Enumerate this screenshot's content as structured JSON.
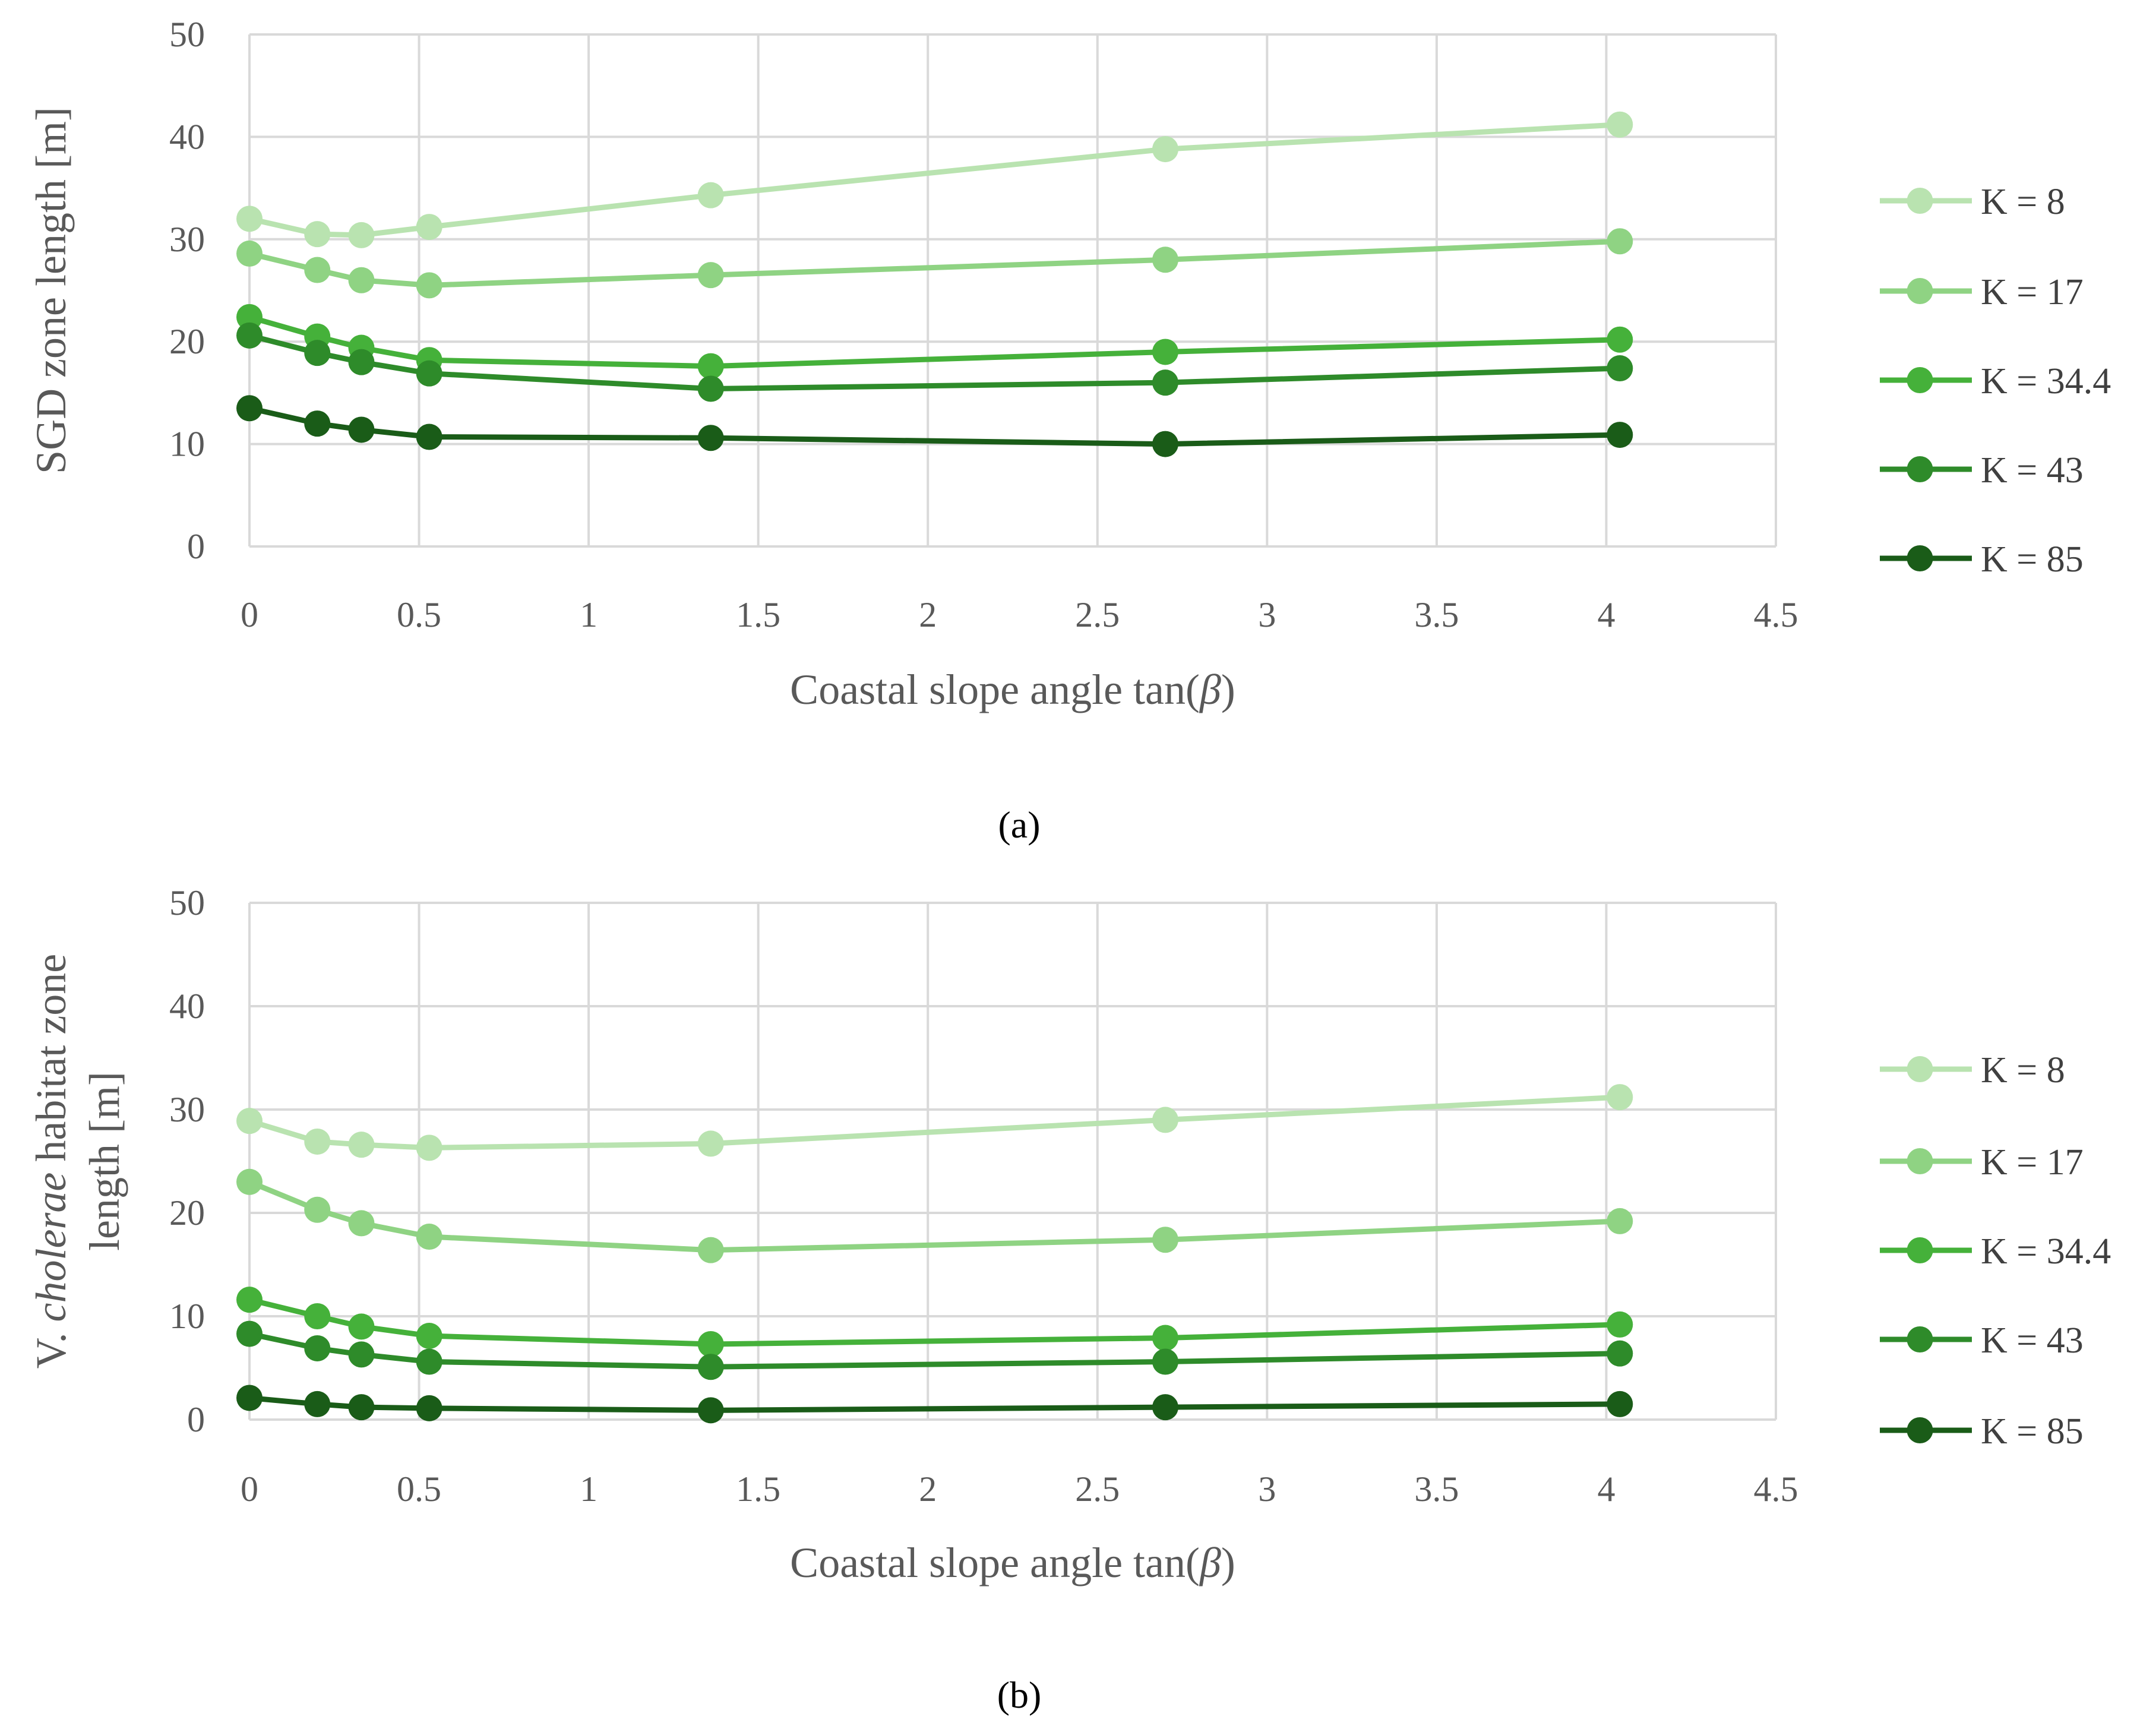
{
  "chart_data": [
    {
      "id": "a",
      "type": "line",
      "caption": "(a)",
      "title": "",
      "xlabel": "Coastal slope angle tan(β)",
      "xlabel_parts": [
        "Coastal slope angle tan(",
        "β",
        ")"
      ],
      "ylabel": "SGD zone length [m]",
      "ylabel_parts": [
        "SGD zone length [m]"
      ],
      "xlim": [
        0,
        4.5
      ],
      "ylim": [
        0,
        50
      ],
      "xticks": [
        "0",
        "0.5",
        "1",
        "1.5",
        "2",
        "2.5",
        "3",
        "3.5",
        "4",
        "4.5"
      ],
      "yticks": [
        "0",
        "10",
        "20",
        "30",
        "40",
        "50"
      ],
      "grid": true,
      "legend": "right",
      "x": [
        0,
        0.2,
        0.33,
        0.53,
        1.36,
        2.7,
        4.04
      ],
      "series": [
        {
          "name": "K = 8",
          "color": "#b9e3b0",
          "values": [
            32.0,
            30.5,
            30.4,
            31.2,
            34.3,
            38.8,
            41.2
          ]
        },
        {
          "name": "K = 17",
          "color": "#8fd383",
          "values": [
            28.6,
            27.0,
            26.0,
            25.5,
            26.5,
            28.0,
            29.8
          ]
        },
        {
          "name": "K = 34.4",
          "color": "#45b13a",
          "values": [
            22.4,
            20.5,
            19.4,
            18.2,
            17.6,
            19.0,
            20.2
          ]
        },
        {
          "name": "K = 43",
          "color": "#2e8b2a",
          "values": [
            20.6,
            18.9,
            18.0,
            16.9,
            15.4,
            16.0,
            17.4
          ]
        },
        {
          "name": "K = 85",
          "color": "#1a5c18",
          "values": [
            13.5,
            12.0,
            11.4,
            10.7,
            10.6,
            10.0,
            10.9
          ]
        }
      ]
    },
    {
      "id": "b",
      "type": "line",
      "caption": "(b)",
      "title": "",
      "xlabel": "Coastal slope angle tan(β)",
      "xlabel_parts": [
        "Coastal slope angle tan(",
        "β",
        ")"
      ],
      "ylabel": "V. cholerae habitat zone length [m]",
      "ylabel_parts": [
        "V. ",
        "cholerae",
        " habitat zone",
        "length [m]"
      ],
      "xlim": [
        0,
        4.5
      ],
      "ylim": [
        0,
        50
      ],
      "xticks": [
        "0",
        "0.5",
        "1",
        "1.5",
        "2",
        "2.5",
        "3",
        "3.5",
        "4",
        "4.5"
      ],
      "yticks": [
        "0",
        "10",
        "20",
        "30",
        "40",
        "50"
      ],
      "grid": true,
      "legend": "right",
      "x": [
        0,
        0.2,
        0.33,
        0.53,
        1.36,
        2.7,
        4.04
      ],
      "series": [
        {
          "name": "K = 8",
          "color": "#b9e3b0",
          "values": [
            28.9,
            26.9,
            26.6,
            26.3,
            26.7,
            29.0,
            31.2
          ]
        },
        {
          "name": "K = 17",
          "color": "#8fd383",
          "values": [
            23.0,
            20.3,
            19.0,
            17.7,
            16.4,
            17.4,
            19.2
          ]
        },
        {
          "name": "K = 34.4",
          "color": "#45b13a",
          "values": [
            11.6,
            10.0,
            9.0,
            8.1,
            7.3,
            7.9,
            9.2
          ]
        },
        {
          "name": "K = 43",
          "color": "#2e8b2a",
          "values": [
            8.3,
            6.9,
            6.3,
            5.6,
            5.1,
            5.6,
            6.4
          ]
        },
        {
          "name": "K = 85",
          "color": "#1a5c18",
          "values": [
            2.1,
            1.5,
            1.2,
            1.1,
            0.9,
            1.2,
            1.5
          ]
        }
      ]
    }
  ]
}
